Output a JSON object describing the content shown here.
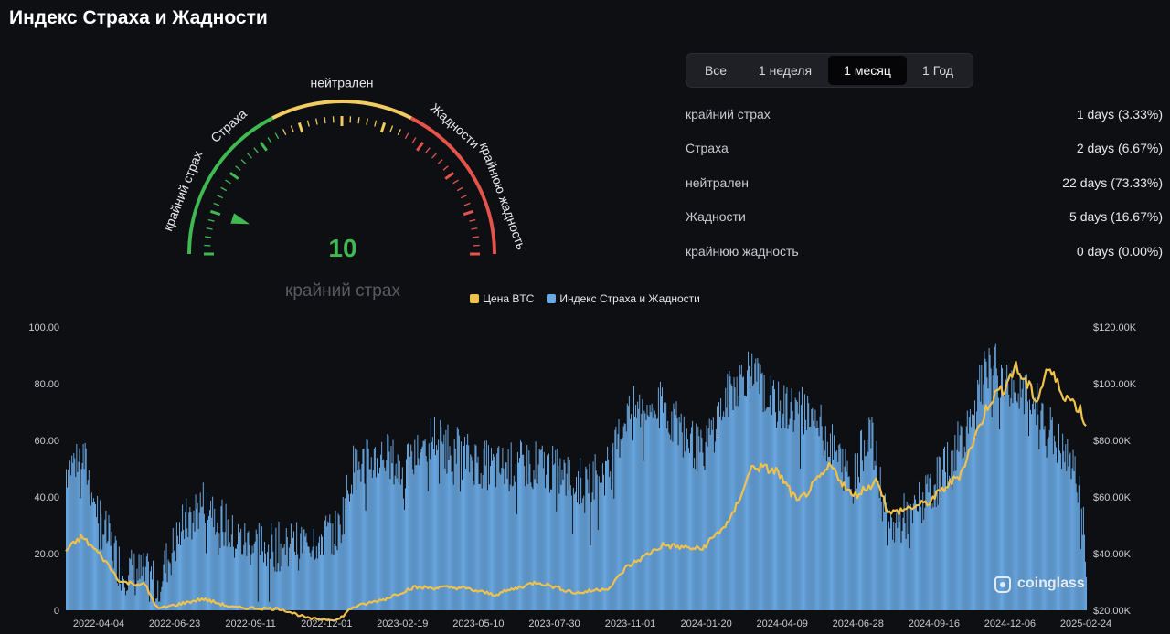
{
  "page_title": "Индекс Страха и Жадности",
  "gauge": {
    "value": "10",
    "caption": "крайний страх",
    "labels": {
      "extreme_fear": "крайний страх",
      "fear": "Страха",
      "neutral": "нейтрален",
      "greed": "Жадности",
      "extreme_greed": "крайнюю жадность"
    },
    "colors": {
      "fear": "#3fb950",
      "neutral": "#f2cc60",
      "greed": "#e5534b"
    }
  },
  "tabs": [
    {
      "label": "Все",
      "active": false
    },
    {
      "label": "1 неделя",
      "active": false
    },
    {
      "label": "1 месяц",
      "active": true
    },
    {
      "label": "1 Год",
      "active": false
    }
  ],
  "stats": [
    {
      "label": "крайний страх",
      "value": "1 days (3.33%)"
    },
    {
      "label": "Страха",
      "value": "2 days (6.67%)"
    },
    {
      "label": "нейтрален",
      "value": "22 days (73.33%)"
    },
    {
      "label": "Жадности",
      "value": "5 days (16.67%)"
    },
    {
      "label": "крайнюю жадность",
      "value": "0 days (0.00%)"
    }
  ],
  "watermark": "coinglass",
  "chart_data": {
    "type": "bar",
    "legend": [
      {
        "name": "Цена BTC",
        "color": "#f0c24b"
      },
      {
        "name": "Индекс Страха и Жадности",
        "color": "#6aa9e3"
      }
    ],
    "y_left": {
      "ticks": [
        "0",
        "20.00",
        "40.00",
        "60.00",
        "80.00",
        "100.00"
      ],
      "range": [
        0,
        100
      ]
    },
    "y_right": {
      "ticks": [
        "$20.00K",
        "$40.00K",
        "$60.00K",
        "$80.00K",
        "$100.00K",
        "$120.00K"
      ],
      "range": [
        20000,
        120000
      ]
    },
    "x_ticks": [
      "2022-04-04",
      "2022-06-23",
      "2022-09-11",
      "2022-12-01",
      "2023-02-19",
      "2023-05-10",
      "2023-07-30",
      "2023-11-01",
      "2024-01-20",
      "2024-04-09",
      "2024-06-28",
      "2024-09-16",
      "2024-12-06",
      "2025-02-24"
    ],
    "series": [
      {
        "name": "Индекс Страха и Жадности",
        "type": "bar",
        "color": "#6aa9e3",
        "keyframes": [
          [
            "2022-03-18",
            50
          ],
          [
            "2022-04-04",
            55
          ],
          [
            "2022-04-25",
            30
          ],
          [
            "2022-05-15",
            15
          ],
          [
            "2022-06-23",
            10
          ],
          [
            "2022-07-20",
            30
          ],
          [
            "2022-08-15",
            40
          ],
          [
            "2022-09-11",
            25
          ],
          [
            "2022-10-10",
            23
          ],
          [
            "2022-11-10",
            22
          ],
          [
            "2022-12-01",
            25
          ],
          [
            "2023-01-01",
            28
          ],
          [
            "2023-01-15",
            50
          ],
          [
            "2023-02-19",
            55
          ],
          [
            "2023-03-10",
            48
          ],
          [
            "2023-04-10",
            62
          ],
          [
            "2023-05-10",
            55
          ],
          [
            "2023-06-15",
            50
          ],
          [
            "2023-07-30",
            52
          ],
          [
            "2023-09-10",
            45
          ],
          [
            "2023-10-15",
            50
          ],
          [
            "2023-11-01",
            70
          ],
          [
            "2023-12-10",
            72
          ],
          [
            "2024-01-20",
            55
          ],
          [
            "2024-02-20",
            78
          ],
          [
            "2024-03-10",
            85
          ],
          [
            "2024-04-09",
            72
          ],
          [
            "2024-05-15",
            70
          ],
          [
            "2024-06-28",
            45
          ],
          [
            "2024-07-15",
            65
          ],
          [
            "2024-08-05",
            28
          ],
          [
            "2024-09-16",
            40
          ],
          [
            "2024-10-20",
            60
          ],
          [
            "2024-11-20",
            88
          ],
          [
            "2024-12-06",
            80
          ],
          [
            "2025-01-10",
            72
          ],
          [
            "2025-02-05",
            55
          ],
          [
            "2025-02-24",
            45
          ],
          [
            "2025-03-02",
            12
          ]
        ]
      },
      {
        "name": "Цена BTC",
        "type": "line",
        "color": "#f0c24b",
        "keyframes": [
          [
            "2022-03-18",
            41000
          ],
          [
            "2022-04-04",
            46000
          ],
          [
            "2022-04-25",
            39000
          ],
          [
            "2022-05-15",
            30000
          ],
          [
            "2022-06-10",
            29000
          ],
          [
            "2022-06-23",
            20500
          ],
          [
            "2022-08-10",
            24000
          ],
          [
            "2022-09-11",
            21000
          ],
          [
            "2022-11-01",
            20500
          ],
          [
            "2022-12-01",
            17000
          ],
          [
            "2023-01-01",
            16700
          ],
          [
            "2023-01-15",
            21000
          ],
          [
            "2023-02-19",
            24000
          ],
          [
            "2023-03-20",
            28000
          ],
          [
            "2023-05-10",
            28000
          ],
          [
            "2023-06-15",
            25500
          ],
          [
            "2023-07-30",
            30000
          ],
          [
            "2023-09-10",
            26000
          ],
          [
            "2023-10-15",
            28000
          ],
          [
            "2023-11-01",
            35000
          ],
          [
            "2023-12-10",
            43000
          ],
          [
            "2024-01-20",
            41500
          ],
          [
            "2024-02-20",
            52000
          ],
          [
            "2024-03-14",
            71000
          ],
          [
            "2024-04-09",
            69000
          ],
          [
            "2024-05-01",
            58000
          ],
          [
            "2024-06-05",
            71000
          ],
          [
            "2024-06-28",
            60000
          ],
          [
            "2024-07-25",
            66000
          ],
          [
            "2024-08-05",
            54000
          ],
          [
            "2024-09-16",
            58000
          ],
          [
            "2024-10-20",
            68000
          ],
          [
            "2024-11-20",
            94000
          ],
          [
            "2024-12-06",
            99000
          ],
          [
            "2024-12-17",
            106000
          ],
          [
            "2025-01-10",
            94000
          ],
          [
            "2025-01-20",
            106000
          ],
          [
            "2025-02-05",
            97000
          ],
          [
            "2025-02-24",
            91000
          ],
          [
            "2025-03-02",
            85000
          ]
        ]
      }
    ]
  }
}
